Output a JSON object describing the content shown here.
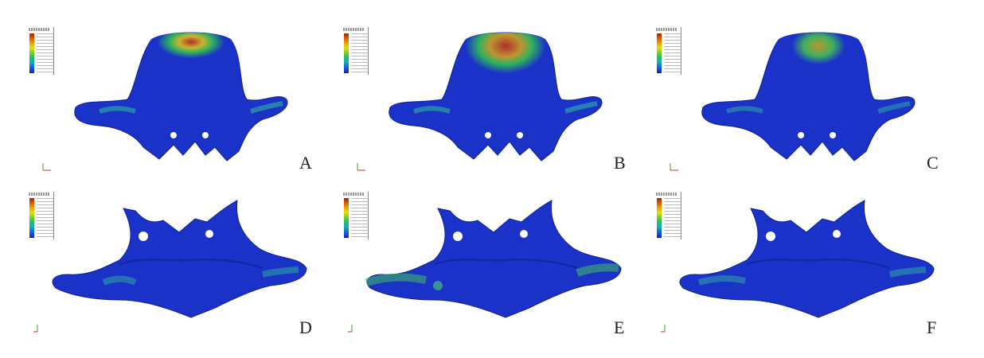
{
  "panels": [
    {
      "id": "A",
      "label": "A",
      "view": "palatal"
    },
    {
      "id": "B",
      "label": "B",
      "view": "palatal"
    },
    {
      "id": "C",
      "label": "C",
      "view": "palatal"
    },
    {
      "id": "D",
      "label": "D",
      "view": "superior"
    },
    {
      "id": "E",
      "label": "E",
      "view": "superior"
    },
    {
      "id": "F",
      "label": "F",
      "view": "superior"
    }
  ],
  "colors": {
    "mesh_blue": "#1a32c8",
    "stress_high": "#c0301a",
    "stress_mid": "#e8d020",
    "stress_low": "#20c060",
    "background": "#ffffff"
  }
}
